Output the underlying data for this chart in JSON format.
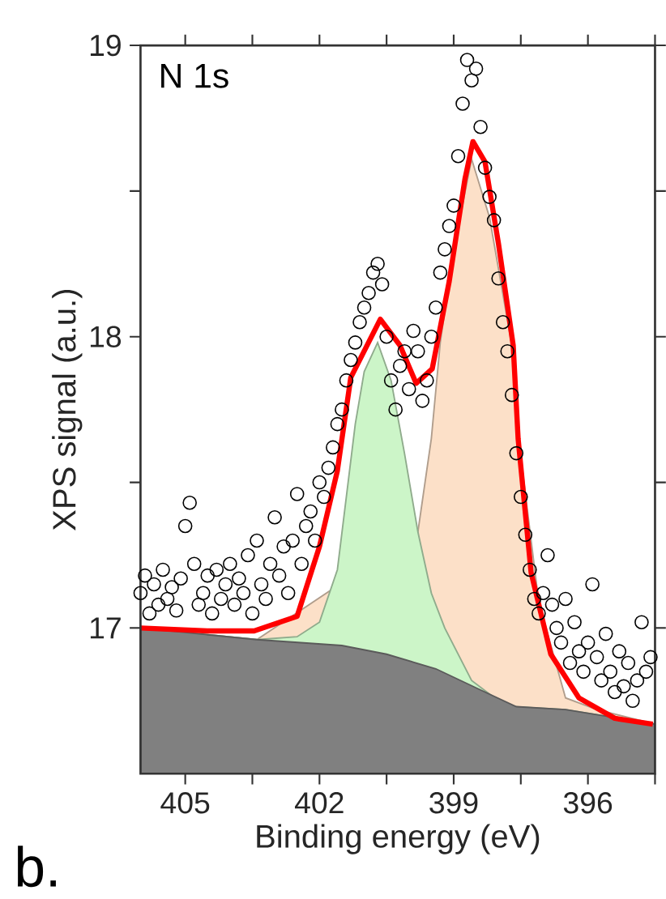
{
  "chart_data": {
    "type": "line",
    "xlabel": "Binding energy (eV)",
    "ylabel": "XPS signal (a.u.)",
    "annotations": [
      "N 1s",
      "b."
    ],
    "xlim": [
      406,
      394.5
    ],
    "ylim": [
      16.5,
      19
    ],
    "xticks": [
      405,
      {
        "value": 403.5,
        "label": null
      },
      402,
      {
        "value": 400.5,
        "label": null
      },
      399,
      {
        "value": 397.5,
        "label": null
      },
      396,
      {
        "value": 394.5,
        "label": null
      }
    ],
    "yticks": [
      17,
      {
        "value": 17.5,
        "label": null
      },
      18,
      {
        "value": 18.5,
        "label": null
      },
      19
    ],
    "series": [
      {
        "type": "area",
        "color": "#fce0c8",
        "x": [
          406,
          403.4,
          399.8,
          399.5,
          399.3,
          399.0,
          398.6,
          398.2,
          397.7,
          397.55,
          397.1,
          396.5,
          395.8,
          394.5
        ],
        "values": [
          17.0,
          16.96,
          17.33,
          17.65,
          17.98,
          18.3,
          18.61,
          18.41,
          17.97,
          17.65,
          17.09,
          16.76,
          16.72,
          16.67
        ]
      },
      {
        "type": "area",
        "color": "#ccf5c8",
        "x": [
          406,
          403.4,
          402.5,
          402.0,
          401.6,
          401.4,
          401.2,
          401.0,
          400.7,
          400.4,
          400.1,
          399.8,
          399.5,
          399.2,
          398.6,
          398.0,
          397.7,
          396.5,
          394.5
        ],
        "values": [
          17.0,
          16.96,
          16.97,
          17.02,
          17.2,
          17.45,
          17.7,
          17.88,
          17.98,
          17.85,
          17.6,
          17.33,
          17.12,
          17.0,
          16.82,
          16.75,
          16.73,
          16.72,
          16.67
        ]
      },
      {
        "type": "area",
        "color": "#808080",
        "x": [
          406,
          403.4,
          401.5,
          400.5,
          399.4,
          398.3,
          397.6,
          396.5,
          394.5
        ],
        "values": [
          17.0,
          16.96,
          16.94,
          16.91,
          16.86,
          16.78,
          16.73,
          16.72,
          16.67
        ]
      },
      {
        "type": "scatter",
        "marker": "circle",
        "color": "#000000",
        "x": [
          406.0,
          405.9,
          405.8,
          405.7,
          405.6,
          405.5,
          405.4,
          405.3,
          405.2,
          405.1,
          405.0,
          404.9,
          404.8,
          404.7,
          404.6,
          404.5,
          404.4,
          404.3,
          404.2,
          404.1,
          404.0,
          403.9,
          403.8,
          403.7,
          403.6,
          403.5,
          403.4,
          403.3,
          403.2,
          403.1,
          403.0,
          402.9,
          402.8,
          402.7,
          402.6,
          402.5,
          402.4,
          402.3,
          402.2,
          402.1,
          402.0,
          401.9,
          401.8,
          401.7,
          401.6,
          401.5,
          401.4,
          401.3,
          401.2,
          401.1,
          401.0,
          400.9,
          400.8,
          400.7,
          400.6,
          400.5,
          400.4,
          400.3,
          400.2,
          400.1,
          400.0,
          399.9,
          399.8,
          399.7,
          399.6,
          399.5,
          399.4,
          399.3,
          399.2,
          399.1,
          399.0,
          398.9,
          398.8,
          398.7,
          398.6,
          398.5,
          398.4,
          398.3,
          398.2,
          398.1,
          398.0,
          397.9,
          397.8,
          397.7,
          397.6,
          397.5,
          397.4,
          397.3,
          397.2,
          397.1,
          397.0,
          396.9,
          396.8,
          396.7,
          396.6,
          396.5,
          396.4,
          396.3,
          396.2,
          396.1,
          396.0,
          395.9,
          395.8,
          395.7,
          395.6,
          395.5,
          395.4,
          395.3,
          395.2,
          395.1,
          395.0,
          394.9,
          394.8,
          394.7,
          394.6
        ],
        "values": [
          17.12,
          17.18,
          17.05,
          17.15,
          17.08,
          17.2,
          17.1,
          17.14,
          17.06,
          17.17,
          17.35,
          17.43,
          17.22,
          17.08,
          17.12,
          17.18,
          17.05,
          17.2,
          17.1,
          17.15,
          17.22,
          17.08,
          17.17,
          17.12,
          17.25,
          17.05,
          17.3,
          17.15,
          17.1,
          17.22,
          17.38,
          17.18,
          17.28,
          17.12,
          17.3,
          17.46,
          17.22,
          17.35,
          17.4,
          17.3,
          17.5,
          17.45,
          17.55,
          17.62,
          17.7,
          17.75,
          17.85,
          17.92,
          17.98,
          18.05,
          18.1,
          18.15,
          18.22,
          18.25,
          18.18,
          18.0,
          17.85,
          17.75,
          17.9,
          17.95,
          17.82,
          18.02,
          17.95,
          17.78,
          17.85,
          18.0,
          18.1,
          18.22,
          18.3,
          18.38,
          18.45,
          18.62,
          18.8,
          18.95,
          18.88,
          18.92,
          18.72,
          18.58,
          18.48,
          18.4,
          18.2,
          18.05,
          17.95,
          17.8,
          17.6,
          17.45,
          17.32,
          17.2,
          17.1,
          17.05,
          17.12,
          17.25,
          17.08,
          17.0,
          16.95,
          17.1,
          16.88,
          17.02,
          16.92,
          16.85,
          16.95,
          17.15,
          16.9,
          16.82,
          16.98,
          16.85,
          16.78,
          16.92,
          16.8,
          16.88,
          16.75,
          16.82,
          17.02,
          16.85,
          16.9
        ]
      },
      {
        "color": "#ff0000",
        "x": [
          406,
          404.5,
          403.46,
          402.5,
          402.0,
          401.6,
          401.3,
          400.64,
          400.2,
          399.84,
          399.48,
          399.1,
          398.75,
          398.57,
          398.3,
          398.0,
          397.67,
          397.56,
          397.27,
          396.83,
          396.2,
          395.4,
          394.55
        ],
        "values": [
          17.0,
          16.99,
          16.99,
          17.04,
          17.28,
          17.54,
          17.86,
          18.06,
          17.97,
          17.84,
          17.89,
          18.19,
          18.54,
          18.67,
          18.6,
          18.32,
          17.97,
          17.65,
          17.19,
          16.91,
          16.76,
          16.69,
          16.67
        ]
      }
    ]
  }
}
